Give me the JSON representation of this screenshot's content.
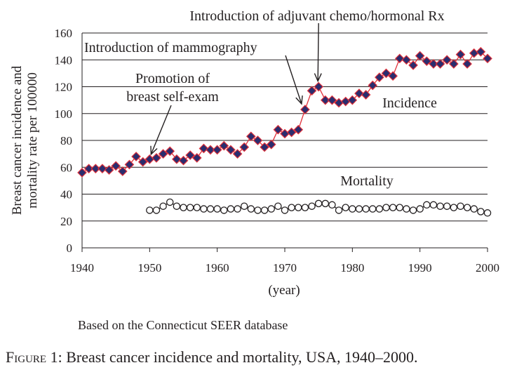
{
  "chart_data": {
    "type": "line",
    "x": [
      1940,
      1941,
      1942,
      1943,
      1944,
      1945,
      1946,
      1947,
      1948,
      1949,
      1950,
      1951,
      1952,
      1953,
      1954,
      1955,
      1956,
      1957,
      1958,
      1959,
      1960,
      1961,
      1962,
      1963,
      1964,
      1965,
      1966,
      1967,
      1968,
      1969,
      1970,
      1971,
      1972,
      1973,
      1974,
      1975,
      1976,
      1977,
      1978,
      1979,
      1980,
      1981,
      1982,
      1983,
      1984,
      1985,
      1986,
      1987,
      1988,
      1989,
      1990,
      1991,
      1992,
      1993,
      1994,
      1995,
      1996,
      1997,
      1998,
      1999,
      2000
    ],
    "series": [
      {
        "name": "Incidence",
        "x": [
          1940,
          1941,
          1942,
          1943,
          1944,
          1945,
          1946,
          1947,
          1948,
          1949,
          1950,
          1951,
          1952,
          1953,
          1954,
          1955,
          1956,
          1957,
          1958,
          1959,
          1960,
          1961,
          1962,
          1963,
          1964,
          1965,
          1966,
          1967,
          1968,
          1969,
          1970,
          1971,
          1972,
          1973,
          1974,
          1975,
          1976,
          1977,
          1978,
          1979,
          1980,
          1981,
          1982,
          1983,
          1984,
          1985,
          1986,
          1987,
          1988,
          1989,
          1990,
          1991,
          1992,
          1993,
          1994,
          1995,
          1996,
          1997,
          1998,
          1999,
          2000
        ],
        "values": [
          56,
          59,
          59,
          59,
          58,
          61,
          57,
          62,
          68,
          64,
          66,
          67,
          70,
          72,
          66,
          65,
          69,
          67,
          74,
          73,
          73,
          76,
          73,
          70,
          75,
          83,
          80,
          75,
          77,
          88,
          85,
          86,
          88,
          103,
          117,
          120,
          110,
          110,
          108,
          109,
          110,
          115,
          114,
          121,
          127,
          130,
          128,
          141,
          140,
          136,
          143,
          139,
          137,
          137,
          140,
          137,
          144,
          137,
          145,
          146,
          141
        ],
        "marker": "diamond",
        "marker_fill": "#2b2d6e",
        "line_color": "#e0303a"
      },
      {
        "name": "Mortality",
        "x": [
          1950,
          1951,
          1952,
          1953,
          1954,
          1955,
          1956,
          1957,
          1958,
          1959,
          1960,
          1961,
          1962,
          1963,
          1964,
          1965,
          1966,
          1967,
          1968,
          1969,
          1970,
          1971,
          1972,
          1973,
          1974,
          1975,
          1976,
          1977,
          1978,
          1979,
          1980,
          1981,
          1982,
          1983,
          1984,
          1985,
          1986,
          1987,
          1988,
          1989,
          1990,
          1991,
          1992,
          1993,
          1994,
          1995,
          1996,
          1997,
          1998,
          1999,
          2000
        ],
        "values": [
          28,
          28,
          31,
          34,
          31,
          30,
          30,
          30,
          29,
          29,
          29,
          28,
          29,
          29,
          31,
          29,
          28,
          28,
          29,
          31,
          28,
          30,
          30,
          30,
          31,
          33,
          33,
          32,
          28,
          30,
          29,
          29,
          29,
          29,
          29,
          30,
          30,
          30,
          29,
          28,
          29,
          32,
          32,
          31,
          31,
          30,
          31,
          30,
          29,
          27,
          26
        ],
        "marker": "open-circle",
        "marker_fill": "#ffffff",
        "line_color": "#231f20"
      }
    ],
    "xlim": [
      1940,
      2000
    ],
    "ylim": [
      0,
      160
    ],
    "xticks": [
      1940,
      1950,
      1960,
      1970,
      1980,
      1990,
      2000
    ],
    "yticks": [
      0,
      20,
      40,
      60,
      80,
      100,
      120,
      140,
      160
    ],
    "xlabel": "(year)",
    "ylabel_lines": [
      "Breast cancer incidence and",
      "mortality rate per 100000"
    ],
    "grid": "horizontal",
    "annotations": [
      {
        "text_lines": [
          "Introduction of adjuvant chemo/hormonal Rx"
        ],
        "points_to_year": 1975
      },
      {
        "text_lines": [
          "Introduction of mammography"
        ],
        "points_to_year": 1973
      },
      {
        "text_lines": [
          "Promotion of",
          "breast self-exam"
        ],
        "points_to_year": 1950
      }
    ],
    "series_labels": [
      "Incidence",
      "Mortality"
    ]
  },
  "source_note": "Based on the Connecticut SEER database",
  "caption": {
    "prefix": "Figure 1",
    "text": ": Breast cancer incidence and mortality, USA, 1940–2000."
  }
}
